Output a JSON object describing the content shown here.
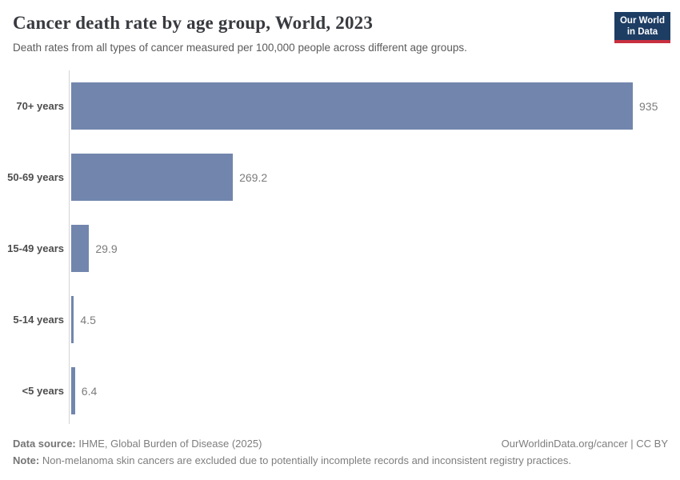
{
  "header": {
    "title": "Cancer death rate by age group, World, 2023",
    "subtitle": "Death rates from all types of cancer measured per 100,000 people across different age groups.",
    "logo": {
      "line1": "Our World",
      "line2": "in Data"
    }
  },
  "chart_data": {
    "type": "bar",
    "orientation": "horizontal",
    "title": "Cancer death rate by age group, World, 2023",
    "categories": [
      "70+ years",
      "50-69 years",
      "15-49 years",
      "5-14 years",
      "<5 years"
    ],
    "values": [
      935,
      269.2,
      29.9,
      4.5,
      6.4
    ],
    "value_labels": [
      "935",
      "269.2",
      "29.9",
      "4.5",
      "6.4"
    ],
    "xlabel": "",
    "ylabel": "",
    "xlim": [
      0,
      935
    ],
    "grid": false,
    "legend": "none",
    "bar_color": "#7286ad",
    "axis_line_color": "#d4d4d4"
  },
  "footer": {
    "datasource_label": "Data source:",
    "datasource_text": " IHME, Global Burden of Disease (2025)",
    "credit": "OurWorldinData.org/cancer | CC BY",
    "note_label": "Note:",
    "note_text": " Non-melanoma skin cancers are excluded due to potentially incomplete records and inconsistent registry practices."
  },
  "colors": {
    "logo_background": "#1d3d63",
    "logo_underline": "#c72f3f",
    "title_text": "#383a3f",
    "subtitle_text": "#5b5b5b",
    "category_label_text": "#4d4d4d",
    "value_label_text": "#7c7c7c"
  }
}
